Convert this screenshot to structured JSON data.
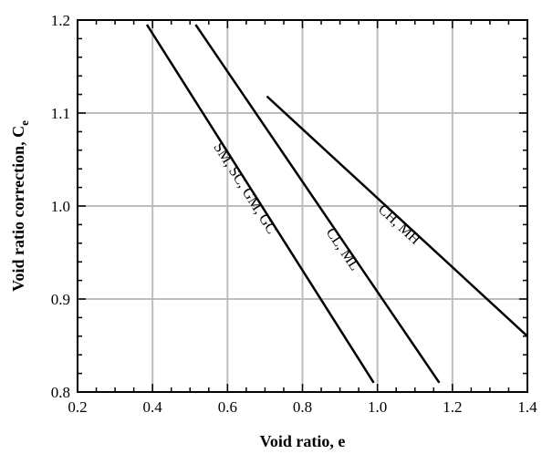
{
  "chart_data": {
    "type": "line",
    "title": "",
    "xlabel": "Void ratio, e",
    "ylabel": "Void ratio correction, C",
    "ylabel_subscript": "e",
    "xlim": [
      0.2,
      1.4
    ],
    "ylim": [
      0.8,
      1.2
    ],
    "x_ticks": [
      "0.2",
      "0.4",
      "0.6",
      "0.8",
      "1.0",
      "1.2",
      "1.4"
    ],
    "y_ticks": [
      "0.8",
      "0.9",
      "1.0",
      "1.1",
      "1.2"
    ],
    "grid": true,
    "colors": {
      "grid": "#bdbdbd",
      "line": "#000000",
      "frame": "#000000"
    },
    "series": [
      {
        "name": "SM, SC, GM, GC",
        "x": [
          0.385,
          0.99
        ],
        "y": [
          1.195,
          0.81
        ]
      },
      {
        "name": "CL, ML",
        "x": [
          0.515,
          1.165
        ],
        "y": [
          1.195,
          0.81
        ]
      },
      {
        "name": "CH, MH",
        "x": [
          0.705,
          1.4
        ],
        "y": [
          1.118,
          0.86
        ]
      }
    ]
  }
}
